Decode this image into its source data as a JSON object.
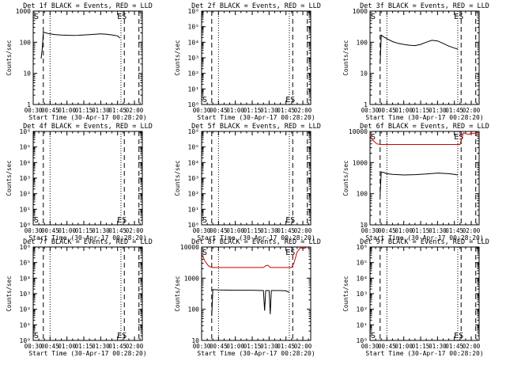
{
  "figure": {
    "xlabel": "Start Time (30-Apr-17 00:28:20)",
    "ylabel": "Counts/sec",
    "x_tick_labels": [
      "00:30",
      "00:45",
      "01:00",
      "01:15",
      "01:30",
      "01:45",
      "02:00"
    ],
    "start_marker": "S",
    "end_marker": "ES",
    "colors": {
      "events": "#000000",
      "lld": "#cc0000",
      "axes": "#000000"
    }
  },
  "chart_data": [
    {
      "type": "line",
      "title": "Det 1f BLACK = Events, RED = LLD",
      "y_scale": "log",
      "ylim": [
        1,
        1000
      ],
      "y_tick_labels": [
        "1",
        "10",
        "100",
        "1000"
      ],
      "xlim": [
        "00:30",
        "02:07"
      ],
      "dashed_lines": [
        "00:39",
        "01:51",
        "02:04"
      ],
      "dotted_lines": [
        "00:45",
        "01:48"
      ],
      "series": [
        {
          "color": "#000000",
          "x": [
            "00:37",
            "00:38",
            "00:39",
            "00:40",
            "00:45",
            "00:50",
            "00:55",
            "01:00",
            "01:05",
            "01:10",
            "01:15",
            "01:20",
            "01:25",
            "01:30",
            "01:35",
            "01:40",
            "01:45",
            "01:46",
            "01:47"
          ],
          "values": [
            30,
            60,
            210,
            205,
            185,
            175,
            170,
            168,
            166,
            167,
            172,
            176,
            180,
            185,
            180,
            172,
            160,
            150,
            135
          ]
        }
      ]
    },
    {
      "type": "line",
      "title": "Det 2f BLACK = Events, RED = LLD",
      "y_scale": "log",
      "ylim": [
        1,
        1000000
      ],
      "y_tick_labels": [
        "10⁰",
        "10¹",
        "10²",
        "10³",
        "10⁴",
        "10⁵",
        "10⁶"
      ],
      "xlim": [
        "00:30",
        "02:07"
      ],
      "dashed_lines": [
        "00:39",
        "01:51",
        "02:04"
      ],
      "dotted_lines": [
        "00:45",
        "01:48"
      ],
      "series": []
    },
    {
      "type": "line",
      "title": "Det 3f BLACK = Events, RED = LLD",
      "y_scale": "log",
      "ylim": [
        1,
        1000
      ],
      "y_tick_labels": [
        "1",
        "10",
        "100",
        "1000"
      ],
      "xlim": [
        "00:30",
        "02:07"
      ],
      "dashed_lines": [
        "00:39",
        "01:51",
        "02:04"
      ],
      "dotted_lines": [
        "00:45",
        "01:48"
      ],
      "series": [
        {
          "color": "#000000",
          "x": [
            "00:39",
            "00:40",
            "00:42",
            "00:45",
            "00:50",
            "00:55",
            "01:00",
            "01:05",
            "01:10",
            "01:15",
            "01:20",
            "01:25",
            "01:30",
            "01:35",
            "01:40",
            "01:45",
            "01:48"
          ],
          "values": [
            20,
            170,
            150,
            130,
            105,
            92,
            85,
            80,
            78,
            85,
            100,
            115,
            110,
            92,
            75,
            65,
            60
          ]
        }
      ]
    },
    {
      "type": "line",
      "title": "Det 4f BLACK = Events, RED = LLD",
      "y_scale": "log",
      "ylim": [
        1,
        1000000
      ],
      "y_tick_labels": [
        "10⁰",
        "10¹",
        "10²",
        "10³",
        "10⁴",
        "10⁵",
        "10⁶"
      ],
      "xlim": [
        "00:30",
        "02:07"
      ],
      "dashed_lines": [
        "00:39",
        "01:51",
        "02:04"
      ],
      "dotted_lines": [
        "00:45",
        "01:48"
      ],
      "series": []
    },
    {
      "type": "line",
      "title": "Det 5f BLACK = Events, RED = LLD",
      "y_scale": "log",
      "ylim": [
        1,
        1000000
      ],
      "y_tick_labels": [
        "10⁰",
        "10¹",
        "10²",
        "10³",
        "10⁴",
        "10⁵",
        "10⁶"
      ],
      "xlim": [
        "00:30",
        "02:07"
      ],
      "dashed_lines": [
        "00:39",
        "01:51",
        "02:04"
      ],
      "dotted_lines": [
        "00:45",
        "01:48"
      ],
      "series": []
    },
    {
      "type": "line",
      "title": "Det 6f BLACK = Events, RED = LLD",
      "y_scale": "log",
      "ylim": [
        10,
        10000
      ],
      "y_tick_labels": [
        "10",
        "100",
        "1000",
        "10000"
      ],
      "xlim": [
        "00:30",
        "02:07"
      ],
      "dashed_lines": [
        "00:39",
        "01:51",
        "02:04"
      ],
      "dotted_lines": [
        "00:45",
        "01:48"
      ],
      "series": [
        {
          "color": "#cc0000",
          "x": [
            "00:30",
            "00:33",
            "00:36",
            "00:39",
            "00:45",
            "01:00",
            "01:15",
            "01:30",
            "01:45",
            "01:50",
            "01:51",
            "01:53",
            "01:55",
            "01:58",
            "02:00",
            "02:02",
            "02:04",
            "02:05"
          ],
          "values": [
            7000,
            5000,
            4000,
            3800,
            3800,
            3800,
            3800,
            3800,
            3800,
            3800,
            5000,
            9000,
            8500,
            8000,
            9000,
            8500,
            9000,
            7000
          ]
        },
        {
          "color": "#000000",
          "x": [
            "00:39",
            "00:40",
            "00:42",
            "00:45",
            "00:50",
            "01:00",
            "01:10",
            "01:20",
            "01:30",
            "01:40",
            "01:45",
            "01:48"
          ],
          "values": [
            90,
            500,
            480,
            440,
            420,
            400,
            410,
            430,
            460,
            440,
            420,
            400
          ]
        }
      ]
    },
    {
      "type": "line",
      "title": "Det 7f BLACK = Events, RED = LLD",
      "y_scale": "log",
      "ylim": [
        1,
        1000000
      ],
      "y_tick_labels": [
        "10⁰",
        "10¹",
        "10²",
        "10³",
        "10⁴",
        "10⁵",
        "10⁶"
      ],
      "xlim": [
        "00:30",
        "02:07"
      ],
      "dashed_lines": [
        "00:39",
        "01:51",
        "02:04"
      ],
      "dotted_lines": [
        "00:45",
        "01:48"
      ],
      "series": []
    },
    {
      "type": "line",
      "title": "Det 8f BLACK = Events, RED = LLD",
      "y_scale": "log",
      "ylim": [
        10,
        10000
      ],
      "y_tick_labels": [
        "10",
        "100",
        "1000",
        "10000"
      ],
      "xlim": [
        "00:30",
        "02:07"
      ],
      "dashed_lines": [
        "00:39",
        "01:51"
      ],
      "dotted_lines": [
        "00:45",
        "01:48"
      ],
      "series": [
        {
          "color": "#cc0000",
          "x": [
            "00:30",
            "00:33",
            "00:36",
            "00:39",
            "00:45",
            "01:00",
            "01:15",
            "01:25",
            "01:27",
            "01:29",
            "01:31",
            "01:45",
            "01:50",
            "01:52",
            "01:55",
            "01:58",
            "02:00",
            "02:03"
          ],
          "values": [
            6000,
            3500,
            2500,
            2200,
            2200,
            2200,
            2200,
            2200,
            2500,
            2600,
            2200,
            2200,
            2200,
            3000,
            7000,
            9500,
            9000,
            9500
          ]
        },
        {
          "color": "#000000",
          "x": [
            "00:39",
            "00:40",
            "00:45",
            "01:00",
            "01:15",
            "01:25",
            "01:26",
            "01:27",
            "01:30",
            "01:31",
            "01:32",
            "01:40",
            "01:45",
            "01:48"
          ],
          "values": [
            60,
            430,
            420,
            410,
            410,
            400,
            90,
            400,
            400,
            70,
            400,
            400,
            390,
            350
          ]
        }
      ]
    },
    {
      "type": "line",
      "title": "Det 9f BLACK = Events, RED = LLD",
      "y_scale": "log",
      "ylim": [
        1,
        1000000
      ],
      "y_tick_labels": [
        "10⁰",
        "10¹",
        "10²",
        "10³",
        "10⁴",
        "10⁵",
        "10⁶"
      ],
      "xlim": [
        "00:30",
        "02:07"
      ],
      "dashed_lines": [
        "00:39",
        "01:51",
        "02:04"
      ],
      "dotted_lines": [
        "00:45",
        "01:48"
      ],
      "series": []
    }
  ]
}
